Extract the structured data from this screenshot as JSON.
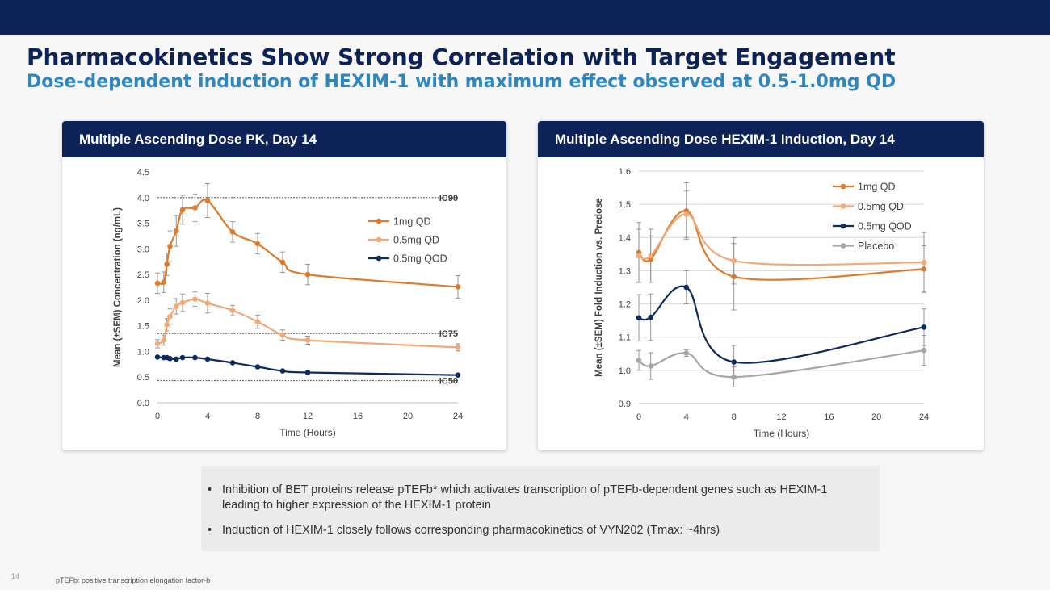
{
  "header": {
    "title": "Pharmacokinetics Show Strong Correlation with Target Engagement",
    "subtitle": "Dose-dependent induction of HEXIM-1 with maximum effect observed at 0.5-1.0mg QD"
  },
  "colors": {
    "navy": "#0d2357",
    "accent_blue": "#2e86c1",
    "orange_1mg": "#e07b2c",
    "light_orange_05mg": "#f2a97a",
    "navy_05qod": "#0f2a5c",
    "gray_placebo": "#a6a6a6"
  },
  "chart_data": [
    {
      "type": "line",
      "panel_title": "Multiple Ascending Dose PK, Day 14",
      "xlabel": "Time (Hours)",
      "ylabel": "Mean (±SEM) Concentration (ng/mL)",
      "xlim": [
        0,
        24
      ],
      "ylim": [
        0,
        4.5
      ],
      "xticks": [
        "0",
        "4",
        "8",
        "12",
        "16",
        "20",
        "24"
      ],
      "yticks": [
        "0.0",
        "0.5",
        "1.0",
        "1.5",
        "2.0",
        "2.5",
        "3.0",
        "3.5",
        "4.0",
        "4.5"
      ],
      "legend_position": "right",
      "reference_lines": [
        {
          "label": "IC90",
          "y": 4.0
        },
        {
          "label": "IC75",
          "y": 1.35
        },
        {
          "label": "IC50",
          "y": 0.43
        }
      ],
      "series": [
        {
          "name": "1mg QD",
          "color": "#e07b2c",
          "points": [
            {
              "x": 0,
              "y": 2.33,
              "err": 0.2
            },
            {
              "x": 0.5,
              "y": 2.35,
              "err": 0.2
            },
            {
              "x": 0.75,
              "y": 2.7,
              "err": 0.22
            },
            {
              "x": 1,
              "y": 3.05,
              "err": 0.3
            },
            {
              "x": 1.5,
              "y": 3.35,
              "err": 0.3
            },
            {
              "x": 2,
              "y": 3.76,
              "err": 0.28
            },
            {
              "x": 3,
              "y": 3.8,
              "err": 0.27
            },
            {
              "x": 4,
              "y": 3.94,
              "err": 0.33
            },
            {
              "x": 6,
              "y": 3.33,
              "err": 0.2
            },
            {
              "x": 8,
              "y": 3.1,
              "err": 0.2
            },
            {
              "x": 10,
              "y": 2.74,
              "err": 0.2
            },
            {
              "x": 12,
              "y": 2.5,
              "err": 0.2
            },
            {
              "x": 24,
              "y": 2.26,
              "err": 0.22
            }
          ]
        },
        {
          "name": "0.5mg QD",
          "color": "#f2a97a",
          "points": [
            {
              "x": 0,
              "y": 1.15,
              "err": 0.08
            },
            {
              "x": 0.5,
              "y": 1.22,
              "err": 0.1
            },
            {
              "x": 0.75,
              "y": 1.52,
              "err": 0.12
            },
            {
              "x": 1,
              "y": 1.68,
              "err": 0.15
            },
            {
              "x": 1.5,
              "y": 1.88,
              "err": 0.15
            },
            {
              "x": 2,
              "y": 1.95,
              "err": 0.17
            },
            {
              "x": 3,
              "y": 2.02,
              "err": 0.14
            },
            {
              "x": 4,
              "y": 1.94,
              "err": 0.19
            },
            {
              "x": 6,
              "y": 1.8,
              "err": 0.1
            },
            {
              "x": 8,
              "y": 1.58,
              "err": 0.13
            },
            {
              "x": 10,
              "y": 1.32,
              "err": 0.1
            },
            {
              "x": 12,
              "y": 1.22,
              "err": 0.08
            },
            {
              "x": 24,
              "y": 1.08,
              "err": 0.07
            }
          ]
        },
        {
          "name": "0.5mg QOD",
          "color": "#0f2a5c",
          "points": [
            {
              "x": 0,
              "y": 0.89,
              "err": 0
            },
            {
              "x": 0.5,
              "y": 0.88,
              "err": 0
            },
            {
              "x": 0.75,
              "y": 0.88,
              "err": 0
            },
            {
              "x": 1,
              "y": 0.86,
              "err": 0
            },
            {
              "x": 1.5,
              "y": 0.85,
              "err": 0
            },
            {
              "x": 2,
              "y": 0.88,
              "err": 0
            },
            {
              "x": 3,
              "y": 0.88,
              "err": 0
            },
            {
              "x": 4,
              "y": 0.85,
              "err": 0
            },
            {
              "x": 6,
              "y": 0.78,
              "err": 0
            },
            {
              "x": 8,
              "y": 0.7,
              "err": 0
            },
            {
              "x": 10,
              "y": 0.62,
              "err": 0
            },
            {
              "x": 12,
              "y": 0.59,
              "err": 0
            },
            {
              "x": 24,
              "y": 0.54,
              "err": 0
            }
          ]
        }
      ]
    },
    {
      "type": "line",
      "panel_title": "Multiple Ascending Dose HEXIM-1 Induction, Day 14",
      "xlabel": "Time (Hours)",
      "ylabel": "Mean (±SEM) Fold Induction vs. Predose",
      "xlim": [
        0,
        24
      ],
      "ylim": [
        0.9,
        1.6
      ],
      "xticks": [
        "0",
        "4",
        "8",
        "12",
        "16",
        "20",
        "24"
      ],
      "yticks": [
        "0.9",
        "1.0",
        "1.1",
        "1.2",
        "1.3",
        "1.4",
        "1.5",
        "1.6"
      ],
      "legend_position": "top-right",
      "series": [
        {
          "name": "1mg QD",
          "color": "#e07b2c",
          "points": [
            {
              "x": 0,
              "y": 1.355,
              "err": 0.09
            },
            {
              "x": 1,
              "y": 1.335,
              "err": 0.07
            },
            {
              "x": 4,
              "y": 1.48,
              "err": 0.085
            },
            {
              "x": 8,
              "y": 1.282,
              "err": 0.1
            },
            {
              "x": 24,
              "y": 1.305,
              "err": 0.07
            }
          ]
        },
        {
          "name": "0.5mg QD",
          "color": "#f2a97a",
          "points": [
            {
              "x": 0,
              "y": 1.345,
              "err": 0.08
            },
            {
              "x": 1,
              "y": 1.345,
              "err": 0.08
            },
            {
              "x": 4,
              "y": 1.47,
              "err": 0.07
            },
            {
              "x": 8,
              "y": 1.33,
              "err": 0.07
            },
            {
              "x": 24,
              "y": 1.325,
              "err": 0.09
            }
          ]
        },
        {
          "name": "0.5mg QOD",
          "color": "#0f2a5c",
          "points": [
            {
              "x": 0,
              "y": 1.158,
              "err": 0.07
            },
            {
              "x": 1,
              "y": 1.16,
              "err": 0.07
            },
            {
              "x": 4,
              "y": 1.25,
              "err": 0.05
            },
            {
              "x": 8,
              "y": 1.025,
              "err": 0.05
            },
            {
              "x": 24,
              "y": 1.13,
              "err": 0.055
            }
          ]
        },
        {
          "name": "Placebo",
          "color": "#a6a6a6",
          "points": [
            {
              "x": 0,
              "y": 1.03,
              "err": 0.03
            },
            {
              "x": 1,
              "y": 1.013,
              "err": 0.04
            },
            {
              "x": 4,
              "y": 1.052,
              "err": 0.01
            },
            {
              "x": 8,
              "y": 0.98,
              "err": 0.03
            },
            {
              "x": 24,
              "y": 1.06,
              "err": 0.045
            }
          ]
        }
      ]
    }
  ],
  "notes": {
    "bullet_char": "•",
    "items": [
      "Inhibition of BET proteins release pTEFb* which activates transcription of pTEFb-dependent genes such as HEXIM-1 leading to higher expression of the HEXIM-1 protein",
      "Induction of HEXIM-1 closely follows corresponding pharmacokinetics of VYN202 (Tmax: ~4hrs)"
    ]
  },
  "footer": {
    "page_number": "14",
    "footnote": "pTEFb: positive transcription elongation factor-b"
  }
}
